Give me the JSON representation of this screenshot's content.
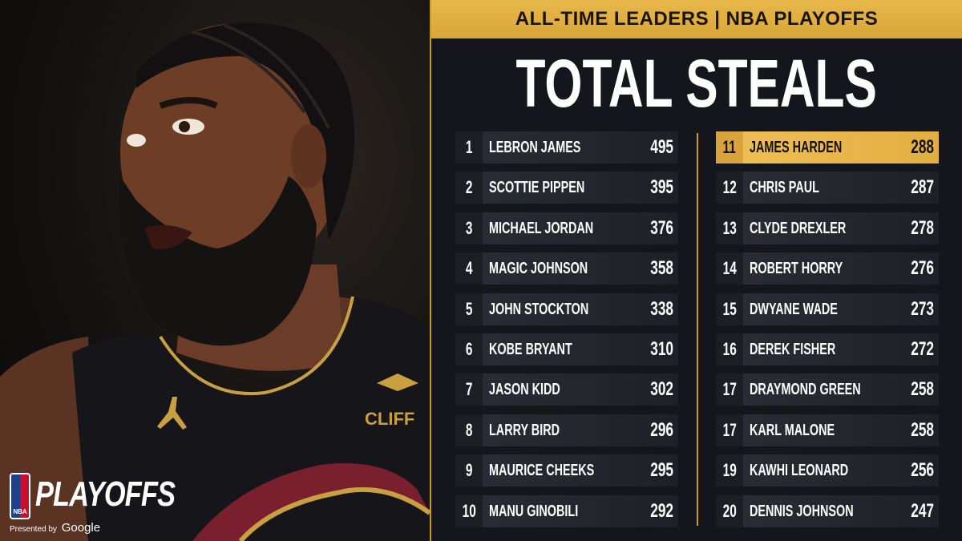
{
  "header": {
    "subtitle": "ALL-TIME LEADERS | NBA PLAYOFFS",
    "title": "TOTAL STEALS"
  },
  "brand": {
    "nba": "NBA",
    "wordmark": "PLAYOFFS",
    "presented_by": "Presented by",
    "sponsor": "Google"
  },
  "jersey": {
    "sponsor_patch": "CLIFF"
  },
  "colors": {
    "gold": "#e2ae40",
    "background": "#14161b",
    "row": "#2a2d35"
  },
  "leaders": [
    {
      "rank": "1",
      "name": "LEBRON JAMES",
      "steals": "495"
    },
    {
      "rank": "2",
      "name": "SCOTTIE PIPPEN",
      "steals": "395"
    },
    {
      "rank": "3",
      "name": "MICHAEL JORDAN",
      "steals": "376"
    },
    {
      "rank": "4",
      "name": "MAGIC JOHNSON",
      "steals": "358"
    },
    {
      "rank": "5",
      "name": "JOHN STOCKTON",
      "steals": "338"
    },
    {
      "rank": "6",
      "name": "KOBE BRYANT",
      "steals": "310"
    },
    {
      "rank": "7",
      "name": "JASON KIDD",
      "steals": "302"
    },
    {
      "rank": "8",
      "name": "LARRY BIRD",
      "steals": "296"
    },
    {
      "rank": "9",
      "name": "MAURICE CHEEKS",
      "steals": "295"
    },
    {
      "rank": "10",
      "name": "MANU GINOBILI",
      "steals": "292"
    },
    {
      "rank": "11",
      "name": "JAMES HARDEN",
      "steals": "288",
      "highlight": true
    },
    {
      "rank": "12",
      "name": "CHRIS PAUL",
      "steals": "287"
    },
    {
      "rank": "13",
      "name": "CLYDE DREXLER",
      "steals": "278"
    },
    {
      "rank": "14",
      "name": "ROBERT HORRY",
      "steals": "276"
    },
    {
      "rank": "15",
      "name": "DWYANE WADE",
      "steals": "273"
    },
    {
      "rank": "16",
      "name": "DEREK FISHER",
      "steals": "272"
    },
    {
      "rank": "17",
      "name": "DRAYMOND GREEN",
      "steals": "258"
    },
    {
      "rank": "17",
      "name": "KARL MALONE",
      "steals": "258"
    },
    {
      "rank": "19",
      "name": "KAWHI LEONARD",
      "steals": "256"
    },
    {
      "rank": "20",
      "name": "DENNIS JOHNSON",
      "steals": "247"
    }
  ]
}
